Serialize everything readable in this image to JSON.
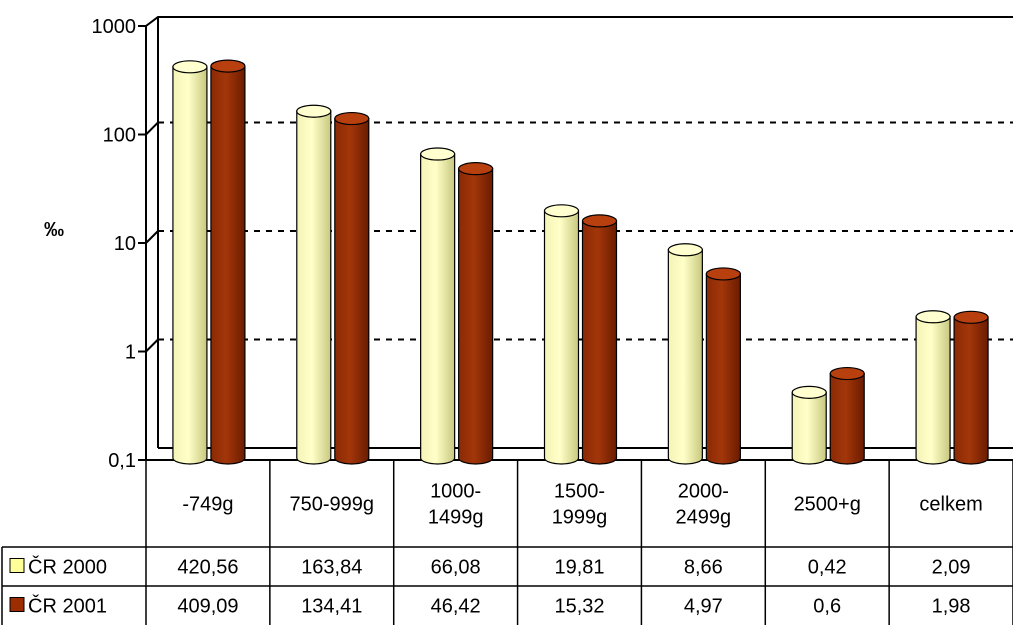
{
  "chart_data": {
    "type": "bar",
    "ylabel": "‰",
    "yscale": "log",
    "ylim": [
      0.1,
      1000
    ],
    "yticks": [
      "1000",
      "100",
      "10",
      "1",
      "0,1"
    ],
    "ytick_values": [
      1000,
      100,
      10,
      1,
      0.1
    ],
    "grid": true,
    "legend": "in data table (left column)",
    "categories": [
      [
        "-749g"
      ],
      [
        "750-999g"
      ],
      [
        "1000-",
        "1499g"
      ],
      [
        "1500-",
        "1999g"
      ],
      [
        "2000-",
        "2499g"
      ],
      [
        "2500+g"
      ],
      [
        "celkem"
      ]
    ],
    "series": [
      {
        "name": "ČR 2000",
        "color": "#ffff99",
        "values": [
          420.56,
          163.84,
          66.08,
          19.81,
          8.66,
          0.42,
          2.09
        ],
        "labels": [
          "420,56",
          "163,84",
          "66,08",
          "19,81",
          "8,66",
          "0,42",
          "2,09"
        ]
      },
      {
        "name": "ČR 2001",
        "color": "#9c2d00",
        "values": [
          409.09,
          134.41,
          46.42,
          15.32,
          4.97,
          0.6,
          1.98
        ],
        "labels": [
          "409,09",
          "134,41",
          "46,42",
          "15,32",
          "4,97",
          "0,6",
          "1,98"
        ]
      }
    ]
  }
}
